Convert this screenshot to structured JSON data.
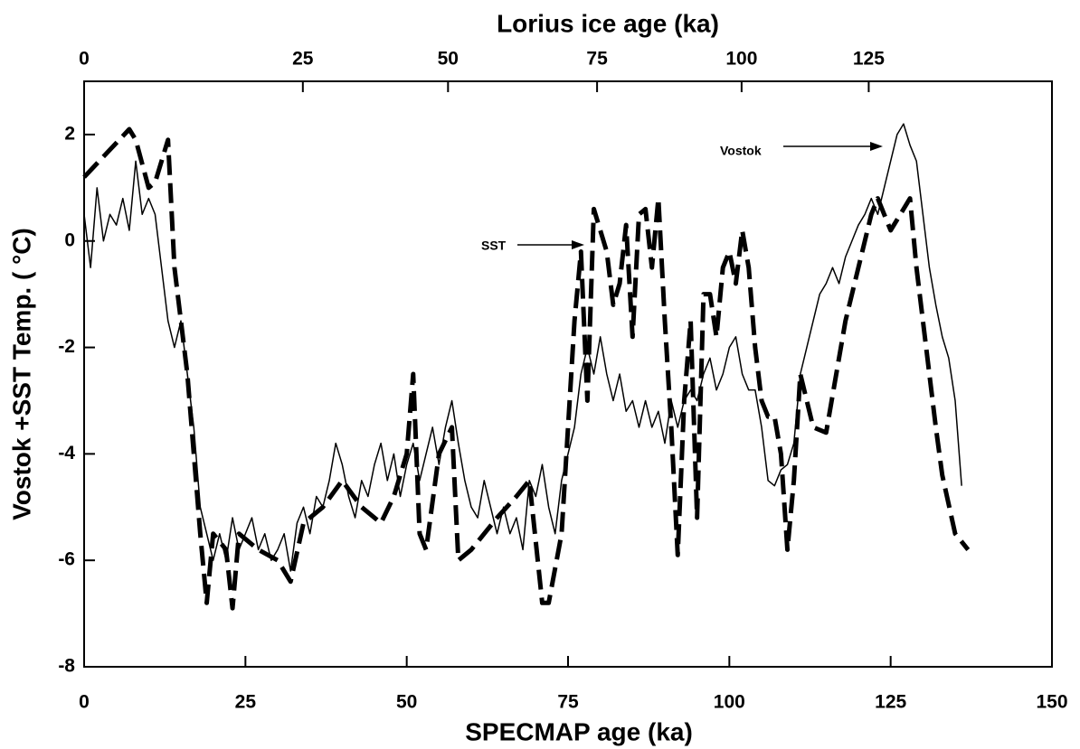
{
  "chart_data": {
    "type": "line",
    "xlabel": "SPECMAP age (ka)",
    "x2label": "Lorius ice age (ka)",
    "ylabel": "Vostok +SST Temp. ( °C)",
    "xlim": [
      0,
      150
    ],
    "xticks": [
      0,
      25,
      50,
      75,
      100,
      125,
      150
    ],
    "x2ticks": [
      {
        "value": 0,
        "label": "0"
      },
      {
        "value": 33.9,
        "label": "25"
      },
      {
        "value": 56.4,
        "label": "50"
      },
      {
        "value": 79.5,
        "label": "75"
      },
      {
        "value": 101.9,
        "label": "100"
      },
      {
        "value": 121.6,
        "label": "125"
      }
    ],
    "ylim": [
      -8,
      3
    ],
    "yticks": [
      -8,
      -6,
      -4,
      -2,
      0,
      2
    ],
    "annotations": [
      "SST",
      "Vostok"
    ],
    "series": [
      {
        "name": "Vostok",
        "color": "#000000",
        "style": "solid",
        "x": [
          0,
          1,
          2,
          3,
          4,
          5,
          6,
          7,
          8,
          9,
          10,
          11,
          12,
          13,
          14,
          15,
          16,
          17,
          18,
          19,
          20,
          21,
          22,
          23,
          24,
          25,
          26,
          27,
          28,
          29,
          30,
          31,
          32,
          33,
          34,
          35,
          36,
          37,
          38,
          39,
          40,
          41,
          42,
          43,
          44,
          45,
          46,
          47,
          48,
          49,
          50,
          51,
          52,
          53,
          54,
          55,
          56,
          57,
          58,
          59,
          60,
          61,
          62,
          63,
          64,
          65,
          66,
          67,
          68,
          69,
          70,
          71,
          72,
          73,
          74,
          75,
          76,
          77,
          78,
          79,
          80,
          81,
          82,
          83,
          84,
          85,
          86,
          87,
          88,
          89,
          90,
          91,
          92,
          93,
          94,
          95,
          96,
          97,
          98,
          99,
          100,
          101,
          102,
          103,
          104,
          105,
          106,
          107,
          108,
          109,
          110,
          111,
          112,
          113,
          114,
          115,
          116,
          117,
          118,
          119,
          120,
          121,
          122,
          123,
          124,
          125,
          126,
          127,
          128,
          129,
          130,
          131,
          132,
          133,
          134,
          135,
          136
        ],
        "values": [
          0.5,
          -0.5,
          1,
          0,
          0.5,
          0.3,
          0.8,
          0.2,
          1.5,
          0.5,
          0.8,
          0.5,
          -0.5,
          -1.5,
          -2,
          -1.5,
          -2.5,
          -3.5,
          -5,
          -5.5,
          -6,
          -5.5,
          -6,
          -5.2,
          -5.8,
          -5.5,
          -5.2,
          -5.8,
          -5.5,
          -6,
          -5.8,
          -5.5,
          -6.2,
          -5.3,
          -5,
          -5.5,
          -4.8,
          -5,
          -4.5,
          -3.8,
          -4.2,
          -4.8,
          -5.2,
          -4.5,
          -4.8,
          -4.2,
          -3.8,
          -4.5,
          -4,
          -4.8,
          -4.2,
          -3.8,
          -4.5,
          -4,
          -3.5,
          -4.2,
          -3.5,
          -3,
          -3.8,
          -4.5,
          -5,
          -5.2,
          -4.5,
          -5,
          -5.5,
          -5,
          -5.5,
          -5.2,
          -5.8,
          -4.5,
          -4.8,
          -4.2,
          -5,
          -5.5,
          -4.5,
          -4,
          -3.5,
          -2.5,
          -2,
          -2.5,
          -1.8,
          -2.5,
          -3,
          -2.5,
          -3.2,
          -3,
          -3.5,
          -3,
          -3.5,
          -3.2,
          -3.8,
          -3,
          -3.5,
          -3,
          -2.8,
          -3,
          -2.5,
          -2.2,
          -2.8,
          -2.5,
          -2,
          -1.8,
          -2.5,
          -2.8,
          -2.8,
          -3.5,
          -4.5,
          -4.6,
          -4.3,
          -4.2,
          -3.8,
          -2.5,
          -2,
          -1.5,
          -1,
          -0.8,
          -0.5,
          -0.8,
          -0.3,
          0,
          0.3,
          0.5,
          0.8,
          0.5,
          1,
          1.5,
          2,
          2.2,
          1.8,
          1.5,
          0.5,
          -0.5,
          -1.2,
          -1.8,
          -2.2,
          -3,
          -4.6
        ]
      },
      {
        "name": "SST",
        "color": "#000000",
        "style": "dashed",
        "x": [
          0,
          7,
          8,
          10,
          11,
          13,
          14,
          16,
          17,
          18,
          19,
          20,
          22,
          23,
          24,
          27,
          30,
          32,
          34,
          37,
          40,
          43,
          46,
          48,
          50,
          51,
          52,
          53,
          55,
          57,
          58,
          60,
          64,
          67,
          69,
          71,
          72,
          74,
          76,
          77,
          78,
          79,
          80,
          81,
          82,
          83,
          84,
          85,
          86,
          87,
          88,
          89,
          90,
          91,
          92,
          93,
          94,
          95,
          96,
          97,
          98,
          99,
          100,
          101,
          102,
          103,
          104,
          105,
          106,
          107,
          108,
          109,
          110,
          111,
          112,
          113,
          115,
          118,
          120,
          122,
          123,
          124,
          125,
          126,
          127,
          128,
          129,
          130,
          131,
          132,
          133,
          135,
          137
        ],
        "values": [
          1.2,
          2.1,
          1.9,
          1,
          1.1,
          1.9,
          -0.5,
          -2.5,
          -4,
          -5.5,
          -6.8,
          -5.5,
          -5.8,
          -6.9,
          -5.5,
          -5.8,
          -6,
          -6.4,
          -5.3,
          -5,
          -4.5,
          -5,
          -5.3,
          -4.8,
          -4,
          -2.5,
          -5.5,
          -5.8,
          -4,
          -3.5,
          -6,
          -5.8,
          -5.2,
          -4.8,
          -4.5,
          -6.8,
          -6.8,
          -5.5,
          -1.5,
          -0.2,
          -3,
          0.6,
          0.2,
          -0.2,
          -1.2,
          -0.8,
          0.3,
          -1.8,
          0.5,
          0.6,
          -0.5,
          0.8,
          -1.5,
          -3.5,
          -5.9,
          -3,
          -1.5,
          -5.2,
          -1,
          -1,
          -1.8,
          -0.5,
          -0.2,
          -0.8,
          0.2,
          -0.5,
          -2,
          -3,
          -3.3,
          -3.3,
          -4,
          -5.8,
          -4.5,
          -2.5,
          -3,
          -3.5,
          -3.6,
          -1.5,
          -0.5,
          0.5,
          0.8,
          0.5,
          0.2,
          0.4,
          0.6,
          0.8,
          -0.5,
          -1.5,
          -2.5,
          -3.5,
          -4.4,
          -5.5,
          -5.8
        ]
      }
    ]
  }
}
